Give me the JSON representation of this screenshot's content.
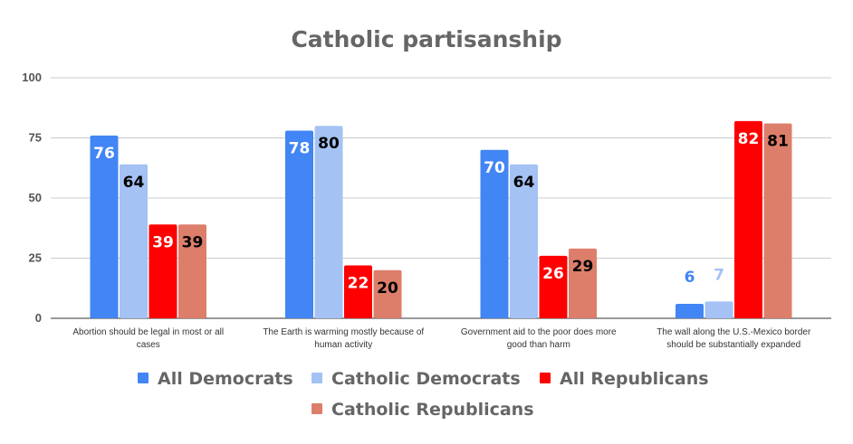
{
  "chart_data": {
    "type": "bar",
    "title": "Catholic partisanship",
    "xlabel": "",
    "ylabel": "",
    "ylim": [
      0,
      100
    ],
    "yticks": [
      "0",
      "25",
      "50",
      "75",
      "100"
    ],
    "grid": true,
    "legend_position": "bottom",
    "categories": [
      [
        "Abortion should be legal in most or all",
        "cases"
      ],
      [
        "The Earth is warming mostly because of",
        "human activity"
      ],
      [
        "Government aid to the poor does more",
        "good than harm"
      ],
      [
        "The wall along the U.S.-Mexico border",
        "should be substantially expanded"
      ]
    ],
    "series": [
      {
        "name": "All Democrats",
        "color": "#4285f4",
        "values": [
          76,
          78,
          70,
          6
        ]
      },
      {
        "name": "Catholic Democrats",
        "color": "#a4c2f4",
        "values": [
          64,
          80,
          64,
          7
        ]
      },
      {
        "name": "All Republicans",
        "color": "#ff0000",
        "values": [
          39,
          22,
          26,
          82
        ]
      },
      {
        "name": "Catholic Republicans",
        "color": "#dd7e6b",
        "values": [
          39,
          20,
          29,
          81
        ]
      }
    ]
  }
}
